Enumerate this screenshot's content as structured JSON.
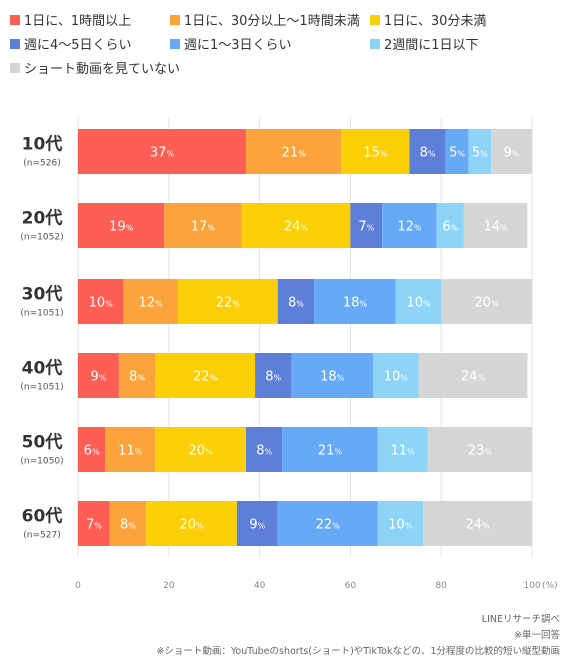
{
  "chart_data": {
    "type": "bar",
    "orientation": "horizontal",
    "stacked": true,
    "categories": [
      "10代",
      "20代",
      "30代",
      "40代",
      "50代",
      "60代"
    ],
    "sample_sizes": [
      "(n=526)",
      "(n=1052)",
      "(n=1051)",
      "(n=1051)",
      "(n=1050)",
      "(n=527)"
    ],
    "series": [
      {
        "name": "1日に、1時間以上",
        "color": "#fd5f55",
        "values": [
          37,
          19,
          10,
          9,
          6,
          7
        ]
      },
      {
        "name": "1日に、30分以上〜1時間未満",
        "color": "#fba43c",
        "values": [
          21,
          17,
          12,
          8,
          11,
          8
        ]
      },
      {
        "name": "1日に、30分未満",
        "color": "#fdcf08",
        "values": [
          15,
          24,
          22,
          22,
          20,
          20
        ]
      },
      {
        "name": "週に4〜5日くらい",
        "color": "#5e7fd8",
        "values": [
          8,
          7,
          8,
          8,
          8,
          9
        ]
      },
      {
        "name": "週に1〜3日くらい",
        "color": "#66a9f6",
        "values": [
          5,
          12,
          18,
          18,
          21,
          22
        ]
      },
      {
        "name": "2週間に1日以下",
        "color": "#8dd4f9",
        "values": [
          5,
          6,
          10,
          10,
          11,
          10
        ]
      },
      {
        "name": "ショート動画を見ていない",
        "color": "#d6d6d6",
        "values": [
          9,
          14,
          20,
          24,
          23,
          24
        ]
      }
    ],
    "value_suffix": "%",
    "xlim": [
      0,
      100
    ],
    "xticks": [
      0,
      20,
      40,
      60,
      80,
      100
    ],
    "x_unit": "(%)",
    "legend_position": "top"
  },
  "footnotes": {
    "source": "LINEリサーチ調べ",
    "single_answer": "※単一回答",
    "definition": "※ショート動画：YouTubeのshorts(ショート)やTikTokなどの、1分程度の比較的短い縦型動画"
  }
}
